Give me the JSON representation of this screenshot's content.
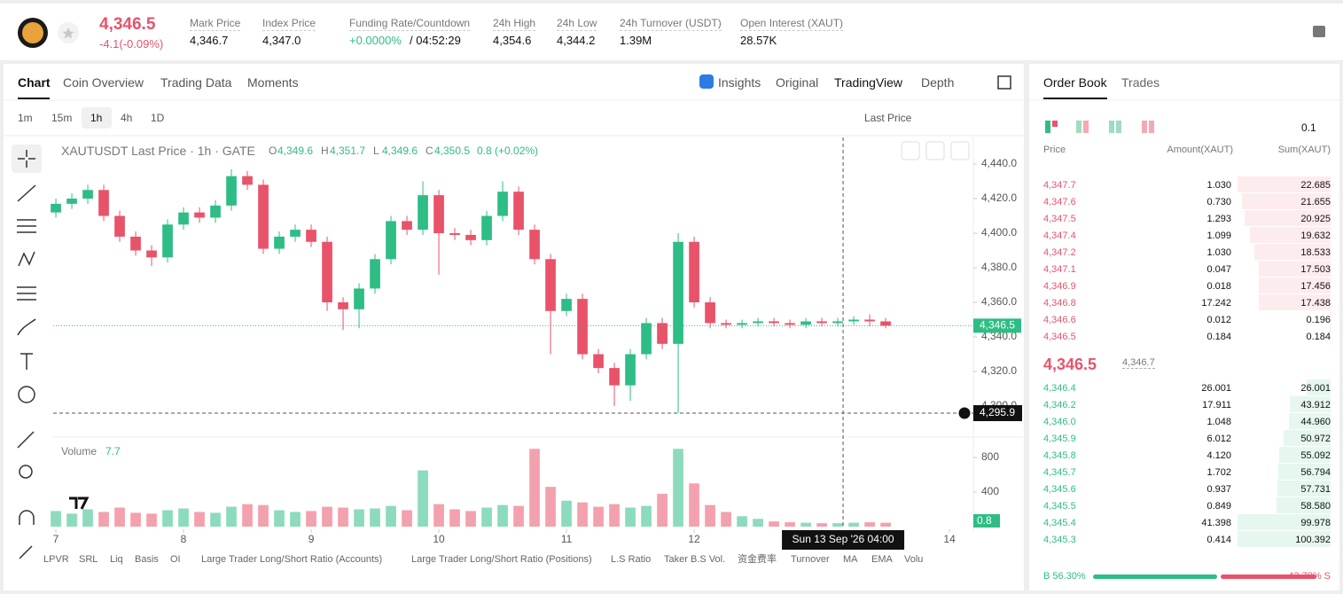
{
  "header": {
    "price": "4,346.5",
    "change": "-4.1(-0.09%)",
    "stats": [
      {
        "label": "Mark Price",
        "value": "4,346.7"
      },
      {
        "label": "Index Price",
        "value": "4,347.0"
      },
      {
        "label": "Funding Rate/Countdown",
        "value": "+0.0000%",
        "extra": "/ 04:52:29"
      },
      {
        "label": "24h High",
        "value": "4,354.6"
      },
      {
        "label": "24h Low",
        "value": "4,344.2"
      },
      {
        "label": "24h Turnover (USDT)",
        "value": "1.39M"
      },
      {
        "label": "Open Interest (XAUT)",
        "value": "28.57K"
      }
    ]
  },
  "chart_tabs": [
    "Chart",
    "Coin Overview",
    "Trading Data",
    "Moments"
  ],
  "view_tabs": [
    "Insights",
    "Original",
    "TradingView",
    "Depth"
  ],
  "intervals": [
    "1m",
    "15m",
    "1h",
    "4h",
    "1D"
  ],
  "price_type": "Last Price",
  "indicators": [
    "LPVR",
    "SRL",
    "Liq",
    "Basis",
    "OI",
    "Large Trader Long/Short Ratio (Accounts)",
    "Large Trader Long/Short Ratio (Positions)",
    "L.S Ratio",
    "Taker B.S Vol.",
    "资金费率",
    "Turnover",
    "MA",
    "EMA",
    "Volu"
  ],
  "chart_data": {
    "type": "candlestick",
    "title": "XAUTUSDT Last Price · 1h · GATE",
    "ohlc": [
      {
        "key": "O",
        "value": "4,349.6"
      },
      {
        "key": "H",
        "value": "4,351.7"
      },
      {
        "key": "L",
        "value": "4,349.6"
      },
      {
        "key": "C",
        "value": "4,350.5"
      }
    ],
    "ohlc_change": "0.8 (+0.02%)",
    "up_color": "#2ebd85",
    "down_color": "#e8536a",
    "x": [
      7,
      7.125,
      7.25,
      7.375,
      7.5,
      7.625,
      7.75,
      7.875,
      8,
      8.125,
      8.25,
      8.375,
      8.5,
      8.625,
      8.75,
      8.875,
      9,
      9.125,
      9.25,
      9.375,
      9.5,
      9.625,
      9.75,
      9.875,
      10,
      10.125,
      10.25,
      10.375,
      10.5,
      10.625,
      10.75,
      10.875,
      11,
      11.125,
      11.25,
      11.375,
      11.5,
      11.625,
      11.75,
      11.875,
      12,
      12.125,
      12.25,
      12.375,
      12.5,
      12.625,
      12.75,
      12.875,
      13,
      13.125,
      13.25,
      13.375,
      13.5
    ],
    "open": [
      4412,
      4417,
      4420,
      4425,
      4410,
      4398,
      4390,
      4386,
      4405,
      4412,
      4409,
      4416,
      4433,
      4428,
      4391,
      4398,
      4402,
      4395,
      4360,
      4356,
      4368,
      4385,
      4407,
      4402,
      4422,
      4400,
      4399,
      4396,
      4410,
      4424,
      4402,
      4385,
      4355,
      4362,
      4330,
      4322,
      4312,
      4330,
      4348,
      4336,
      4395,
      4360,
      4348,
      4347,
      4348,
      4349,
      4348,
      4347,
      4349,
      4348,
      4349,
      4350,
      4349
    ],
    "high": [
      4420,
      4423,
      4428,
      4428,
      4413,
      4401,
      4393,
      4408,
      4415,
      4415,
      4419,
      4437,
      4436,
      4431,
      4401,
      4405,
      4405,
      4398,
      4363,
      4371,
      4388,
      4410,
      4410,
      4430,
      4425,
      4403,
      4402,
      4413,
      4430,
      4427,
      4405,
      4388,
      4365,
      4365,
      4333,
      4325,
      4333,
      4351,
      4351,
      4400,
      4398,
      4363,
      4350,
      4350,
      4351,
      4351,
      4350,
      4351,
      4351,
      4351,
      4352,
      4353,
      4351
    ],
    "low": [
      4409,
      4414,
      4417,
      4407,
      4395,
      4387,
      4381,
      4383,
      4402,
      4406,
      4406,
      4413,
      4425,
      4388,
      4388,
      4395,
      4392,
      4355,
      4344,
      4345,
      4365,
      4382,
      4399,
      4399,
      4376,
      4396,
      4393,
      4393,
      4407,
      4399,
      4382,
      4330,
      4352,
      4327,
      4319,
      4300,
      4303,
      4327,
      4333,
      4296,
      4357,
      4345,
      4345,
      4345,
      4346,
      4346,
      4345,
      4345,
      4346,
      4346,
      4347,
      4346,
      4345
    ],
    "close": [
      4417,
      4420,
      4425,
      4410,
      4398,
      4390,
      4386,
      4405,
      4412,
      4409,
      4416,
      4433,
      4428,
      4391,
      4398,
      4402,
      4395,
      4360,
      4356,
      4368,
      4385,
      4407,
      4402,
      4422,
      4400,
      4399,
      4396,
      4410,
      4424,
      4402,
      4385,
      4355,
      4362,
      4330,
      4322,
      4312,
      4330,
      4348,
      4336,
      4395,
      4360,
      4348,
      4347,
      4348,
      4349,
      4348,
      4347,
      4349,
      4348,
      4349,
      4350,
      4349,
      4346.5
    ],
    "volume": [
      180,
      150,
      200,
      170,
      220,
      160,
      150,
      190,
      210,
      170,
      160,
      230,
      260,
      250,
      190,
      170,
      180,
      230,
      220,
      200,
      210,
      240,
      190,
      650,
      260,
      200,
      180,
      220,
      250,
      240,
      900,
      460,
      300,
      280,
      230,
      260,
      220,
      240,
      380,
      900,
      500,
      250,
      170,
      120,
      90,
      60,
      50,
      45,
      40,
      40,
      45,
      50,
      45
    ],
    "xlim": [
      6.979,
      14.187
    ],
    "xticks": [
      7,
      8,
      9,
      10,
      11,
      12,
      13,
      14
    ],
    "ylim": [
      4283.6,
      4455.4
    ],
    "yticks": [
      {
        "value": 4300,
        "label": "4,300.0"
      },
      {
        "value": 4320,
        "label": "4,320.0"
      },
      {
        "value": 4340,
        "label": "4,340.0"
      },
      {
        "value": 4360,
        "label": "4,360.0"
      },
      {
        "value": 4380,
        "label": "4,380.0"
      },
      {
        "value": 4400,
        "label": "4,400.0"
      },
      {
        "value": 4420,
        "label": "4,420.0"
      },
      {
        "value": 4440,
        "label": "4,440.0"
      }
    ],
    "last_price": {
      "value": 4346.5,
      "label": "4,346.5"
    },
    "crosshair": {
      "x": 13.1667,
      "x_label": "Sun 13 Sep '26 04:00",
      "value": 4295.9,
      "label": "4,295.9"
    },
    "volume_panel": {
      "title": "Volume",
      "current": "7.7",
      "last": "0.8",
      "ylim": [
        0,
        1005
      ],
      "yticks": [
        400,
        800
      ]
    }
  },
  "order_book": {
    "tabs": [
      "Order Book",
      "Trades"
    ],
    "precision": "0.1",
    "headers": [
      "Price",
      "Amount(XAUT)",
      "Sum(XAUT)"
    ],
    "asks": [
      {
        "price": "4,347.7",
        "amount": "1.030",
        "sum": {
          "value": 22.685,
          "label": "22.685"
        }
      },
      {
        "price": "4,347.6",
        "amount": "0.730",
        "sum": {
          "value": 21.655,
          "label": "21.655"
        }
      },
      {
        "price": "4,347.5",
        "amount": "1.293",
        "sum": {
          "value": 20.925,
          "label": "20.925"
        }
      },
      {
        "price": "4,347.4",
        "amount": "1.099",
        "sum": {
          "value": 19.632,
          "label": "19.632"
        }
      },
      {
        "price": "4,347.2",
        "amount": "1.030",
        "sum": {
          "value": 18.533,
          "label": "18.533"
        }
      },
      {
        "price": "4,347.1",
        "amount": "0.047",
        "sum": {
          "value": 17.503,
          "label": "17.503"
        }
      },
      {
        "price": "4,346.9",
        "amount": "0.018",
        "sum": {
          "value": 17.456,
          "label": "17.456"
        }
      },
      {
        "price": "4,346.8",
        "amount": "17.242",
        "sum": {
          "value": 17.438,
          "label": "17.438"
        }
      },
      {
        "price": "4,346.6",
        "amount": "0.012",
        "sum": {
          "value": 0.196,
          "label": "0.196"
        }
      },
      {
        "price": "4,346.5",
        "amount": "0.184",
        "sum": {
          "value": 0.184,
          "label": "0.184"
        }
      }
    ],
    "mid": {
      "price": "4,346.5",
      "mark": "4,346.7"
    },
    "bids": [
      {
        "price": "4,346.4",
        "amount": "26.001",
        "sum": {
          "value": 26.001,
          "label": "26.001"
        }
      },
      {
        "price": "4,346.2",
        "amount": "17.911",
        "sum": {
          "value": 43.912,
          "label": "43.912"
        }
      },
      {
        "price": "4,346.0",
        "amount": "1.048",
        "sum": {
          "value": 44.96,
          "label": "44.960"
        }
      },
      {
        "price": "4,345.9",
        "amount": "6.012",
        "sum": {
          "value": 50.972,
          "label": "50.972"
        }
      },
      {
        "price": "4,345.8",
        "amount": "4.120",
        "sum": {
          "value": 55.092,
          "label": "55.092"
        }
      },
      {
        "price": "4,345.7",
        "amount": "1.702",
        "sum": {
          "value": 56.794,
          "label": "56.794"
        }
      },
      {
        "price": "4,345.6",
        "amount": "0.937",
        "sum": {
          "value": 57.731,
          "label": "57.731"
        }
      },
      {
        "price": "4,345.5",
        "amount": "0.849",
        "sum": {
          "value": 58.58,
          "label": "58.580"
        }
      },
      {
        "price": "4,345.4",
        "amount": "41.398",
        "sum": {
          "value": 99.978,
          "label": "99.978"
        }
      },
      {
        "price": "4,345.3",
        "amount": "0.414",
        "sum": {
          "value": 100.392,
          "label": "100.392"
        }
      }
    ],
    "ratio": {
      "buy": {
        "value": 56.3,
        "label": "B 56.30%"
      },
      "sell": {
        "value": 43.7,
        "label": "43.70% S"
      }
    }
  }
}
